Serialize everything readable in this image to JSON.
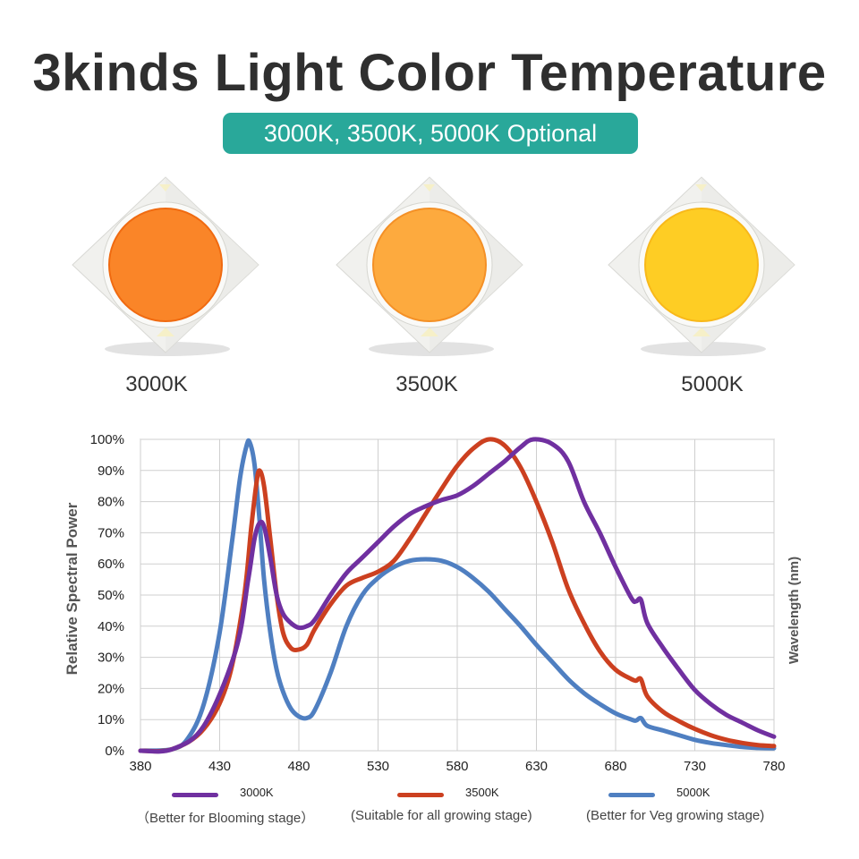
{
  "header": {
    "title": "3kinds Light Color Temperature",
    "subtitle": "3000K, 3500K, 5000K Optional"
  },
  "chips": [
    {
      "label": "3000K",
      "color": "#fa8528",
      "edge": "#f06a10"
    },
    {
      "label": "3500K",
      "color": "#fdaa3e",
      "edge": "#f49026"
    },
    {
      "label": "5000K",
      "color": "#fecd24",
      "edge": "#f8b81a"
    }
  ],
  "chart_data": {
    "type": "line",
    "ylabel": "Relative Spectral Power",
    "xlabel": "Wavelength (nm)",
    "xlim": [
      380,
      780
    ],
    "ylim": [
      0,
      100
    ],
    "x_ticks": [
      380,
      430,
      480,
      530,
      580,
      630,
      680,
      730,
      780
    ],
    "y_ticks": [
      "0%",
      "10%",
      "20%",
      "30%",
      "40%",
      "50%",
      "60%",
      "70%",
      "80%",
      "90%",
      "100%"
    ],
    "grid": true,
    "series": [
      {
        "name": "3000K",
        "note": "（Better for Blooming stage）",
        "color": "#7030a0",
        "x": [
          380,
          400,
          420,
          440,
          448,
          452,
          455,
          458,
          462,
          466,
          470,
          475,
          480,
          485,
          490,
          500,
          510,
          520,
          530,
          540,
          550,
          560,
          570,
          580,
          590,
          600,
          610,
          620,
          628,
          640,
          650,
          660,
          670,
          680,
          690,
          693,
          696,
          700,
          710,
          720,
          730,
          740,
          750,
          760,
          770,
          780
        ],
        "y": [
          0,
          0.5,
          8,
          32,
          55,
          68,
          73,
          72,
          62,
          50,
          44,
          41,
          39.5,
          40,
          42,
          50,
          57,
          62,
          67,
          72,
          76,
          78.5,
          80.5,
          82,
          85,
          89,
          93,
          97.5,
          100,
          98.5,
          93,
          80,
          70,
          59,
          49,
          48,
          48.5,
          41,
          33,
          26,
          19.5,
          15,
          11.5,
          9,
          6.5,
          4.5
        ]
      },
      {
        "name": "3500K",
        "note": "(Suitable for all growing stage)",
        "color": "#cc4020",
        "x": [
          380,
          400,
          420,
          435,
          445,
          450,
          453,
          455,
          458,
          462,
          466,
          470,
          475,
          480,
          485,
          490,
          500,
          510,
          520,
          530,
          540,
          550,
          560,
          570,
          580,
          590,
          600,
          610,
          620,
          630,
          640,
          650,
          660,
          670,
          680,
          690,
          693,
          696,
          700,
          710,
          720,
          730,
          740,
          750,
          760,
          770,
          780
        ],
        "y": [
          0,
          0.5,
          7,
          22,
          48,
          72,
          85,
          90,
          85,
          68,
          50,
          38,
          33,
          32.5,
          34,
          39,
          47,
          53,
          55.5,
          57.5,
          61,
          68,
          76,
          84,
          91.5,
          97,
          100,
          98,
          91,
          80,
          67,
          52,
          41,
          32,
          26,
          23,
          22.5,
          23,
          17.5,
          12.5,
          9.5,
          7,
          5,
          3.5,
          2.5,
          1.8,
          1.5
        ]
      },
      {
        "name": "5000K",
        "note": "(Better for Veg growing stage)",
        "color": "#4f7fc1",
        "x": [
          380,
          400,
          410,
          420,
          430,
          438,
          443,
          447,
          449,
          452,
          455,
          458,
          462,
          466,
          470,
          475,
          480,
          485,
          490,
          500,
          510,
          520,
          530,
          540,
          550,
          560,
          570,
          580,
          590,
          600,
          610,
          620,
          630,
          640,
          650,
          660,
          670,
          680,
          690,
          693,
          696,
          700,
          710,
          720,
          730,
          740,
          750,
          760,
          770,
          780
        ],
        "y": [
          0,
          0.5,
          4,
          15,
          38,
          68,
          88,
          98,
          99,
          92,
          75,
          55,
          38,
          26,
          19,
          13.5,
          11,
          10.5,
          13,
          25,
          40,
          50,
          55.5,
          59,
          61,
          61.5,
          61,
          59,
          55.5,
          51,
          45.5,
          40,
          34,
          28.5,
          23,
          18.5,
          15,
          12,
          10,
          9.7,
          10.5,
          8,
          6.5,
          5,
          3.5,
          2.5,
          1.8,
          1.2,
          0.9,
          0.8
        ]
      }
    ]
  }
}
